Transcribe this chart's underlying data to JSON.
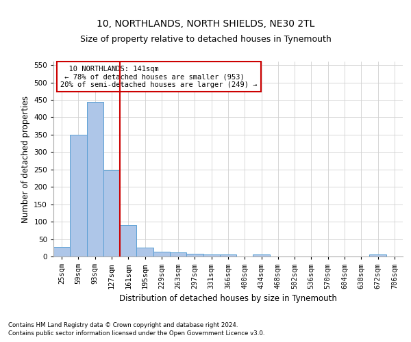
{
  "title1": "10, NORTHLANDS, NORTH SHIELDS, NE30 2TL",
  "title2": "Size of property relative to detached houses in Tynemouth",
  "xlabel": "Distribution of detached houses by size in Tynemouth",
  "ylabel": "Number of detached properties",
  "categories": [
    "25sqm",
    "59sqm",
    "93sqm",
    "127sqm",
    "161sqm",
    "195sqm",
    "229sqm",
    "263sqm",
    "297sqm",
    "331sqm",
    "366sqm",
    "400sqm",
    "434sqm",
    "468sqm",
    "502sqm",
    "536sqm",
    "570sqm",
    "604sqm",
    "638sqm",
    "672sqm",
    "706sqm"
  ],
  "values": [
    28,
    350,
    445,
    248,
    90,
    25,
    14,
    12,
    8,
    6,
    5,
    0,
    5,
    0,
    0,
    0,
    0,
    0,
    0,
    5,
    0
  ],
  "bar_color": "#aec6e8",
  "bar_edge_color": "#5a9fd4",
  "grid_color": "#d0d0d0",
  "red_line_x": 3.5,
  "annotation_text": "  10 NORTHLANDS: 141sqm\n ← 78% of detached houses are smaller (953)\n20% of semi-detached houses are larger (249) →",
  "annotation_box_color": "#ffffff",
  "annotation_box_edge": "#cc0000",
  "ylim": [
    0,
    560
  ],
  "yticks": [
    0,
    50,
    100,
    150,
    200,
    250,
    300,
    350,
    400,
    450,
    500,
    550
  ],
  "footer1": "Contains HM Land Registry data © Crown copyright and database right 2024.",
  "footer2": "Contains public sector information licensed under the Open Government Licence v3.0.",
  "title1_fontsize": 10,
  "title2_fontsize": 9,
  "tick_fontsize": 7.5,
  "xlabel_fontsize": 8.5,
  "ylabel_fontsize": 8.5,
  "annot_fontsize": 7.5
}
